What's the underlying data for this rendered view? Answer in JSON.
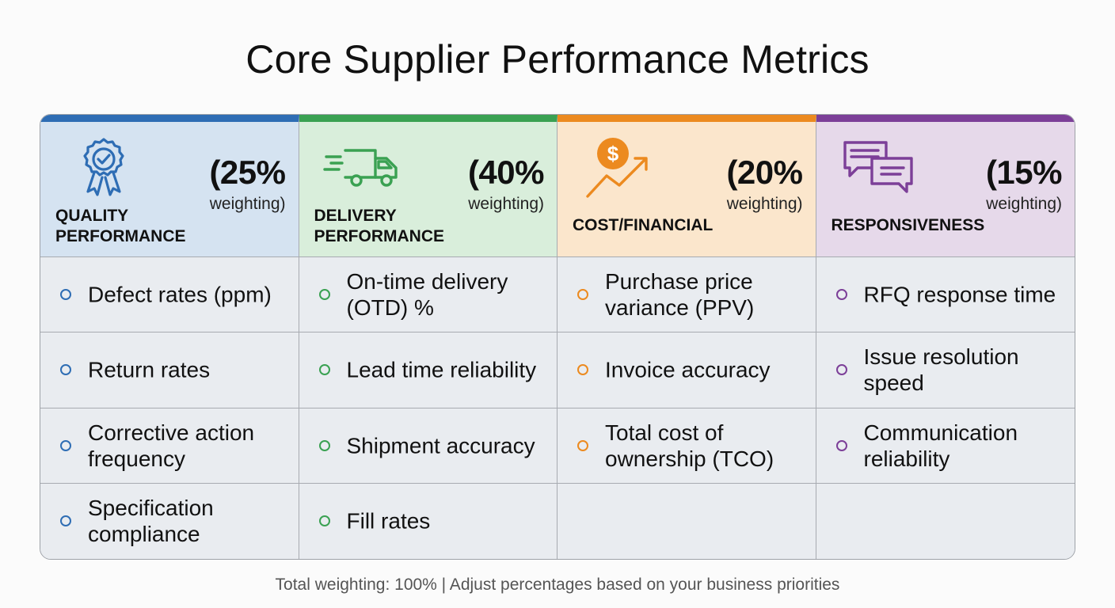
{
  "title": "Core Supplier Performance Metrics",
  "footer": "Total weighting: 100% | Adjust percentages based on your business priorities",
  "columns": [
    {
      "name": "QUALITY\nPERFORMANCE",
      "percent": "(25%",
      "weighting": "weighting)",
      "icon": "award-ribbon-icon",
      "accent": "#2e6db4",
      "bg": "#d5e3f1",
      "items": [
        "Defect rates (ppm)",
        "Return rates",
        "Corrective action frequency",
        "Specification compliance"
      ]
    },
    {
      "name": "DELIVERY\nPERFORMANCE",
      "percent": "(40%",
      "weighting": "weighting)",
      "icon": "delivery-truck-icon",
      "accent": "#3aa152",
      "bg": "#d9eedb",
      "items": [
        "On-time delivery (OTD) %",
        "Lead time reliability",
        "Shipment accuracy",
        "Fill rates"
      ]
    },
    {
      "name": "COST/FINANCIAL",
      "percent": "(20%",
      "weighting": "weighting)",
      "icon": "dollar-growth-icon",
      "accent": "#ec8a1f",
      "bg": "#fbe6cc",
      "items": [
        "Purchase price variance (PPV)",
        "Invoice accuracy",
        "Total cost of ownership (TCO)",
        ""
      ]
    },
    {
      "name": "RESPONSIVENESS",
      "percent": "(15%",
      "weighting": "weighting)",
      "icon": "chat-bubbles-icon",
      "accent": "#7c3f98",
      "bg": "#e6d9ea",
      "items": [
        "RFQ response time",
        "Issue resolution speed",
        "Communication reliability",
        ""
      ]
    }
  ]
}
